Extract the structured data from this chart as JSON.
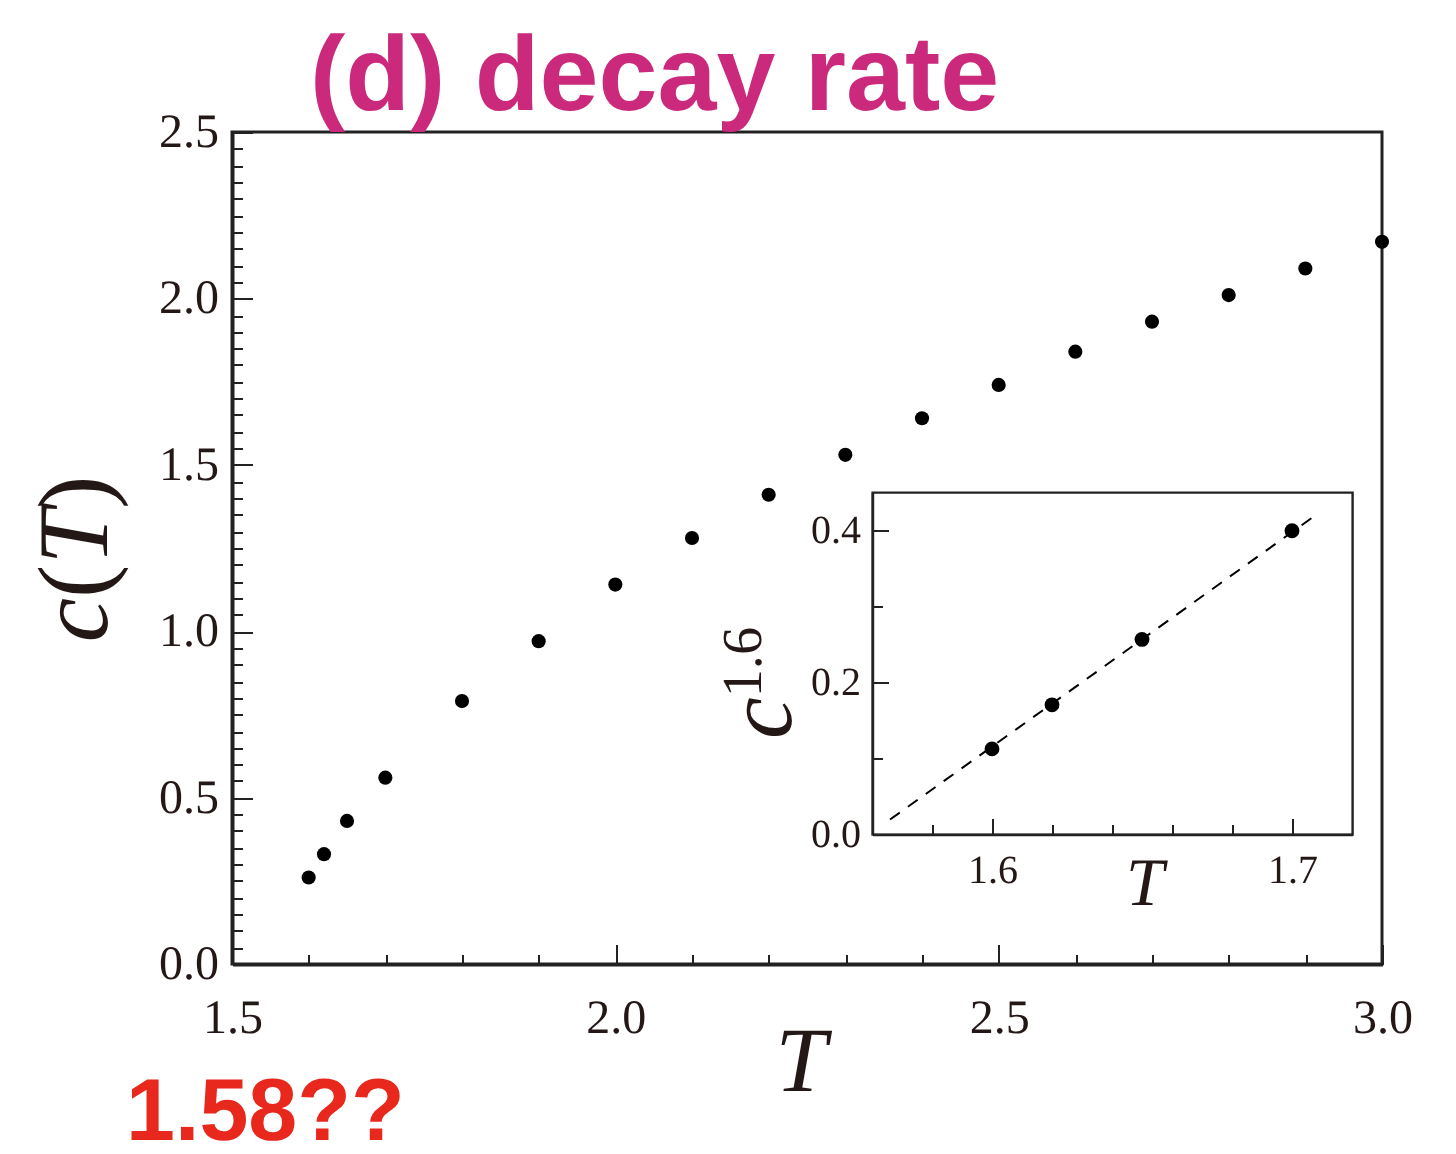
{
  "chart_data": [
    {
      "type": "scatter",
      "title": "(d) decay rate",
      "xlabel": "T",
      "ylabel": "c(T)",
      "marker": "circle",
      "color": "#000000",
      "x": [
        1.6,
        1.62,
        1.65,
        1.7,
        1.8,
        1.9,
        2.0,
        2.1,
        2.2,
        2.3,
        2.4,
        2.5,
        2.6,
        2.7,
        2.8,
        2.9,
        3.0
      ],
      "values": [
        0.26,
        0.33,
        0.43,
        0.56,
        0.79,
        0.97,
        1.14,
        1.28,
        1.41,
        1.53,
        1.64,
        1.74,
        1.84,
        1.93,
        2.01,
        2.09,
        2.17
      ],
      "xlim": [
        1.5,
        3.0
      ],
      "ylim": [
        0,
        2.5
      ],
      "xticks": [
        1.5,
        {
          "value": 1.6,
          "label": null
        },
        {
          "value": 1.7,
          "label": null
        },
        {
          "value": 1.8,
          "label": null
        },
        {
          "value": 1.9,
          "label": null
        },
        {
          "value": 2,
          "label": "2.0"
        },
        {
          "value": 2.1,
          "label": null
        },
        {
          "value": 2.2,
          "label": null
        },
        {
          "value": 2.3,
          "label": null
        },
        {
          "value": 2.4,
          "label": null
        },
        2.5,
        {
          "value": 2.6,
          "label": null
        },
        {
          "value": 2.7,
          "label": null
        },
        {
          "value": 2.8,
          "label": null
        },
        {
          "value": 2.9,
          "label": null
        },
        {
          "value": 3,
          "label": "3.0"
        }
      ],
      "yticks": [
        {
          "value": 0,
          "label": "0.0"
        },
        {
          "value": 0.05,
          "label": null
        },
        {
          "value": 0.1,
          "label": null
        },
        {
          "value": 0.15,
          "label": null
        },
        {
          "value": 0.2,
          "label": null
        },
        {
          "value": 0.25,
          "label": null
        },
        {
          "value": 0.3,
          "label": null
        },
        {
          "value": 0.35,
          "label": null
        },
        {
          "value": 0.4,
          "label": null
        },
        {
          "value": 0.45,
          "label": null
        },
        0.5,
        {
          "value": 0.55,
          "label": null
        },
        {
          "value": 0.6,
          "label": null
        },
        {
          "value": 0.65,
          "label": null
        },
        {
          "value": 0.7,
          "label": null
        },
        {
          "value": 0.75,
          "label": null
        },
        {
          "value": 0.8,
          "label": null
        },
        {
          "value": 0.85,
          "label": null
        },
        {
          "value": 0.9,
          "label": null
        },
        {
          "value": 0.95,
          "label": null
        },
        {
          "value": 1,
          "label": "1.0"
        },
        {
          "value": 1.05,
          "label": null
        },
        {
          "value": 1.1,
          "label": null
        },
        {
          "value": 1.15,
          "label": null
        },
        {
          "value": 1.2,
          "label": null
        },
        {
          "value": 1.25,
          "label": null
        },
        {
          "value": 1.3,
          "label": null
        },
        {
          "value": 1.35,
          "label": null
        },
        {
          "value": 1.4,
          "label": null
        },
        {
          "value": 1.45,
          "label": null
        },
        1.5,
        {
          "value": 1.55,
          "label": null
        },
        {
          "value": 1.6,
          "label": null
        },
        {
          "value": 1.65,
          "label": null
        },
        {
          "value": 1.7,
          "label": null
        },
        {
          "value": 1.75,
          "label": null
        },
        {
          "value": 1.8,
          "label": null
        },
        {
          "value": 1.85,
          "label": null
        },
        {
          "value": 1.9,
          "label": null
        },
        {
          "value": 1.95,
          "label": null
        },
        {
          "value": 2,
          "label": "2.0"
        },
        {
          "value": 2.05,
          "label": null
        },
        {
          "value": 2.1,
          "label": null
        },
        {
          "value": 2.15,
          "label": null
        },
        {
          "value": 2.2,
          "label": null
        },
        {
          "value": 2.25,
          "label": null
        },
        {
          "value": 2.3,
          "label": null
        },
        {
          "value": 2.35,
          "label": null
        },
        {
          "value": 2.4,
          "label": null
        },
        {
          "value": 2.45,
          "label": null
        },
        2.5
      ],
      "annotations": [
        "1.58??"
      ]
    },
    {
      "type": "scatter",
      "xlabel": "T",
      "ylabel": "c$^{1.6}$",
      "series": [
        {
          "type": "line",
          "color": "#000000",
          "line_style": "dashed",
          "x": [
            1.566,
            1.707
          ],
          "values": [
            0.019,
            0.417
          ]
        },
        {
          "color": "#000000",
          "marker": "circle",
          "x": [
            1.6,
            1.62,
            1.65,
            1.7
          ],
          "values": [
            0.112,
            0.17,
            0.256,
            0.399
          ]
        }
      ],
      "xlim": [
        1.56,
        1.72
      ],
      "ylim": [
        0,
        0.45
      ],
      "xticks": [
        {
          "value": 1.58,
          "label": null
        },
        1.6,
        {
          "value": 1.62,
          "label": null
        },
        {
          "value": 1.64,
          "label": null
        },
        {
          "value": 1.66,
          "label": null
        },
        {
          "value": 1.68,
          "label": null
        },
        1.7
      ],
      "yticks": [
        {
          "value": 0,
          "label": "0.0"
        },
        {
          "value": 0.1,
          "label": null
        },
        0.2,
        {
          "value": 0.3,
          "label": null
        },
        0.4
      ]
    }
  ]
}
